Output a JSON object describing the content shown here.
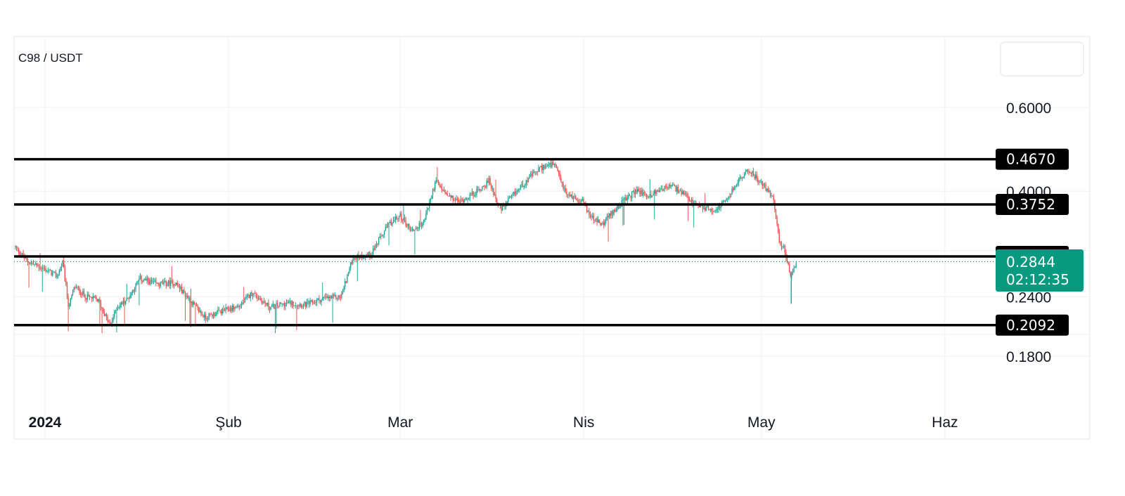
{
  "colors": {
    "up": "#26a69a",
    "down": "#ef5350",
    "level": "#000000",
    "last_price": "#089981"
  },
  "chart_data": {
    "type": "candlestick",
    "title": "C98 / USDT",
    "y_axis": {
      "scale": "log",
      "ticks": [
        "0.6000",
        "0.4000",
        "0.2400",
        "0.1800"
      ],
      "tick_values": [
        0.6,
        0.4,
        0.24,
        0.18
      ]
    },
    "x_axis": {
      "labels": [
        "2024",
        "Şub",
        "Mar",
        "Nis",
        "May",
        "Haz"
      ],
      "dates": [
        "2024-01-01",
        "2024-02-01",
        "2024-03-01",
        "2024-04-01",
        "2024-05-01",
        "2024-06-01"
      ]
    },
    "levels": [
      {
        "label": "0.4670",
        "value": 0.467
      },
      {
        "label": "0.3752",
        "value": 0.3752
      },
      {
        "label": "0.2918",
        "value": 0.2918
      },
      {
        "label": "0.2092",
        "value": 0.2092
      }
    ],
    "last_price": {
      "label": "0.2844",
      "value": 0.2844,
      "countdown": "02:12:35"
    },
    "grid": true,
    "close_path": [
      [
        "2023-12-27",
        0.305
      ],
      [
        "2023-12-29",
        0.285
      ],
      [
        "2024-01-01",
        0.274
      ],
      [
        "2024-01-03",
        0.265
      ],
      [
        "2024-01-04",
        0.283
      ],
      [
        "2024-01-05",
        0.228
      ],
      [
        "2024-01-06",
        0.252
      ],
      [
        "2024-01-08",
        0.24
      ],
      [
        "2024-01-10",
        0.236
      ],
      [
        "2024-01-12",
        0.208
      ],
      [
        "2024-01-13",
        0.227
      ],
      [
        "2024-01-15",
        0.238
      ],
      [
        "2024-01-17",
        0.262
      ],
      [
        "2024-01-20",
        0.255
      ],
      [
        "2024-01-23",
        0.257
      ],
      [
        "2024-01-25",
        0.24
      ],
      [
        "2024-01-28",
        0.217
      ],
      [
        "2024-01-30",
        0.222
      ],
      [
        "2024-02-03",
        0.23
      ],
      [
        "2024-02-05",
        0.245
      ],
      [
        "2024-02-08",
        0.228
      ],
      [
        "2024-02-11",
        0.233
      ],
      [
        "2024-02-14",
        0.231
      ],
      [
        "2024-02-17",
        0.238
      ],
      [
        "2024-02-20",
        0.24
      ],
      [
        "2024-02-22",
        0.29
      ],
      [
        "2024-02-25",
        0.295
      ],
      [
        "2024-02-28",
        0.34
      ],
      [
        "2024-03-01",
        0.355
      ],
      [
        "2024-03-03",
        0.33
      ],
      [
        "2024-03-05",
        0.345
      ],
      [
        "2024-03-07",
        0.42
      ],
      [
        "2024-03-09",
        0.39
      ],
      [
        "2024-03-11",
        0.38
      ],
      [
        "2024-03-14",
        0.4
      ],
      [
        "2024-03-16",
        0.42
      ],
      [
        "2024-03-18",
        0.365
      ],
      [
        "2024-03-21",
        0.405
      ],
      [
        "2024-03-23",
        0.43
      ],
      [
        "2024-03-25",
        0.45
      ],
      [
        "2024-03-27",
        0.455
      ],
      [
        "2024-03-29",
        0.395
      ],
      [
        "2024-04-01",
        0.38
      ],
      [
        "2024-04-02",
        0.355
      ],
      [
        "2024-04-04",
        0.34
      ],
      [
        "2024-04-07",
        0.375
      ],
      [
        "2024-04-10",
        0.402
      ],
      [
        "2024-04-12",
        0.39
      ],
      [
        "2024-04-14",
        0.405
      ],
      [
        "2024-04-16",
        0.41
      ],
      [
        "2024-04-18",
        0.392
      ],
      [
        "2024-04-20",
        0.372
      ],
      [
        "2024-04-23",
        0.365
      ],
      [
        "2024-04-25",
        0.38
      ],
      [
        "2024-04-27",
        0.42
      ],
      [
        "2024-04-29",
        0.443
      ],
      [
        "2024-05-01",
        0.415
      ],
      [
        "2024-05-03",
        0.39
      ],
      [
        "2024-05-04",
        0.315
      ],
      [
        "2024-05-05",
        0.3
      ],
      [
        "2024-05-06",
        0.263
      ],
      [
        "2024-05-07",
        0.2844
      ]
    ]
  }
}
